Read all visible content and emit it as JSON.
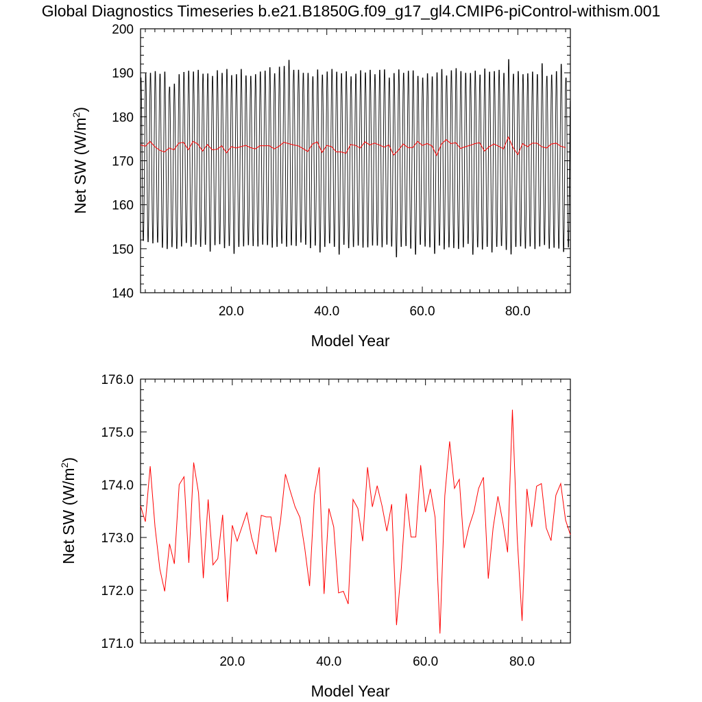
{
  "figure_title": "Global Diagnostics Timeseries b.e21.B1850G.f09_g17_gl4.CMIP6-piControl-withism.001",
  "colors": {
    "monthly": "#000000",
    "annual": "#ff0000",
    "axes": "#000000",
    "background": "#ffffff"
  },
  "chart_data": [
    {
      "type": "line",
      "xlabel": "Model Year",
      "ylabel": "Net SW (W/m",
      "ylabel_sup": "2",
      "ylabel_close": ")",
      "xlim": [
        1,
        91
      ],
      "ylim": [
        140,
        200
      ],
      "xticks": [
        20,
        40,
        60,
        80
      ],
      "xtick_labels": [
        "20.0",
        "40.0",
        "60.0",
        "80.0"
      ],
      "yticks": [
        140,
        150,
        160,
        170,
        180,
        190,
        200
      ],
      "ytick_labels": [
        "140",
        "150",
        "160",
        "170",
        "180",
        "190",
        "200"
      ],
      "grid": false,
      "series": [
        {
          "role": "monthly",
          "color": "#000000",
          "seasonal_cycle": {
            "period_years": 1,
            "peak_month": 1,
            "trough_month": 7
          },
          "annual_peaks": [
            189.5,
            190.5,
            190.6,
            191.0,
            190.4,
            190.9,
            187.4,
            188.1,
            190.3,
            190.8,
            191.1,
            190.9,
            191.3,
            190.4,
            190.5,
            189.9,
            191.2,
            190.6,
            191.5,
            190.1,
            190.3,
            191.5,
            190.0,
            189.9,
            190.3,
            190.9,
            191.1,
            191.9,
            190.5,
            192.0,
            192.2,
            193.6,
            191.3,
            191.3,
            190.6,
            190.6,
            189.8,
            191.4,
            190.2,
            190.9,
            191.5,
            190.9,
            190.5,
            191.0,
            189.8,
            190.4,
            191.2,
            190.7,
            191.3,
            190.3,
            191.3,
            191.4,
            189.5,
            190.6,
            191.4,
            190.6,
            191.1,
            191.2,
            189.9,
            189.5,
            190.5,
            189.8,
            190.7,
            191.5,
            190.0,
            191.2,
            191.7,
            191.0,
            190.6,
            190.6,
            191.1,
            190.2,
            191.6,
            190.9,
            191.0,
            191.3,
            190.6,
            193.8,
            190.4,
            191.0,
            190.3,
            190.5,
            190.9,
            190.3,
            192.8,
            189.9,
            190.2,
            191.0,
            192.7,
            189.5
          ],
          "annual_troughs": [
            151.2,
            150.9,
            150.6,
            150.8,
            149.6,
            149.3,
            149.8,
            149.4,
            149.9,
            150.7,
            149.8,
            150.3,
            149.8,
            150.3,
            148.7,
            150.2,
            150.4,
            149.5,
            150.0,
            148.2,
            149.8,
            149.9,
            150.2,
            150.0,
            149.9,
            150.3,
            150.2,
            149.6,
            149.8,
            150.5,
            149.8,
            150.1,
            150.0,
            150.8,
            150.3,
            149.5,
            150.1,
            148.5,
            149.8,
            150.6,
            149.8,
            148.0,
            150.3,
            149.5,
            149.8,
            150.1,
            149.6,
            149.7,
            150.1,
            150.1,
            149.7,
            150.3,
            149.9,
            147.4,
            149.8,
            150.0,
            149.4,
            148.0,
            150.3,
            149.9,
            149.7,
            148.2,
            150.1,
            149.2,
            149.7,
            149.5,
            149.3,
            149.7,
            150.5,
            148.0,
            149.7,
            149.2,
            149.8,
            148.5,
            149.8,
            150.0,
            149.1,
            148.0,
            149.8,
            149.9,
            149.4,
            149.9,
            149.3,
            149.9,
            150.2,
            149.4,
            149.6,
            149.4,
            148.6,
            149.7
          ]
        },
        {
          "role": "annual_mean",
          "color": "#ff0000",
          "x": [
            1,
            2,
            3,
            4,
            5,
            6,
            7,
            8,
            9,
            10,
            11,
            12,
            13,
            14,
            15,
            16,
            17,
            18,
            19,
            20,
            21,
            22,
            23,
            24,
            25,
            26,
            27,
            28,
            29,
            30,
            31,
            32,
            33,
            34,
            35,
            36,
            37,
            38,
            39,
            40,
            41,
            42,
            43,
            44,
            45,
            46,
            47,
            48,
            49,
            50,
            51,
            52,
            53,
            54,
            55,
            56,
            57,
            58,
            59,
            60,
            61,
            62,
            63,
            64,
            65,
            66,
            67,
            68,
            69,
            70,
            71,
            72,
            73,
            74,
            75,
            76,
            77,
            78,
            79,
            80,
            81,
            82,
            83,
            84,
            85,
            86,
            87,
            88,
            89,
            90
          ],
          "y": [
            173.6,
            173.3,
            174.4,
            173.2,
            172.4,
            172.0,
            172.9,
            172.5,
            174.0,
            174.2,
            172.5,
            174.4,
            173.8,
            172.2,
            173.7,
            172.5,
            172.6,
            173.4,
            171.8,
            173.2,
            172.9,
            173.2,
            173.5,
            173.0,
            172.7,
            173.4,
            173.4,
            173.4,
            172.7,
            173.3,
            174.2,
            173.9,
            173.6,
            173.4,
            172.8,
            172.1,
            173.8,
            174.3,
            171.9,
            173.5,
            173.2,
            172.0,
            172.0,
            171.7,
            173.7,
            173.5,
            172.9,
            174.3,
            173.6,
            174.0,
            173.6,
            173.1,
            173.6,
            171.3,
            172.4,
            173.8,
            173.0,
            173.0,
            174.4,
            173.5,
            173.9,
            173.4,
            171.2,
            173.8,
            174.8,
            173.9,
            174.1,
            172.8,
            173.2,
            173.5,
            173.9,
            174.1,
            172.2,
            173.2,
            173.8,
            173.3,
            172.7,
            175.4,
            173.0,
            171.4,
            173.9,
            173.2,
            174.0,
            174.0,
            173.2,
            172.9,
            173.8,
            174.0,
            173.3,
            173.0
          ]
        }
      ]
    },
    {
      "type": "line",
      "xlabel": "Model Year",
      "ylabel": "Net SW (W/m",
      "ylabel_sup": "2",
      "ylabel_close": ")",
      "xlim": [
        1,
        90
      ],
      "ylim": [
        171,
        176
      ],
      "xticks": [
        20,
        40,
        60,
        80
      ],
      "xtick_labels": [
        "20.0",
        "40.0",
        "60.0",
        "80.0"
      ],
      "yticks": [
        171,
        172,
        173,
        174,
        175,
        176
      ],
      "ytick_labels": [
        "171.0",
        "172.0",
        "173.0",
        "174.0",
        "175.0",
        "176.0"
      ],
      "grid": false,
      "series": [
        {
          "role": "annual_mean",
          "color": "#ff0000",
          "x": [
            1,
            2,
            3,
            4,
            5,
            6,
            7,
            8,
            9,
            10,
            11,
            12,
            13,
            14,
            15,
            16,
            17,
            18,
            19,
            20,
            21,
            22,
            23,
            24,
            25,
            26,
            27,
            28,
            29,
            30,
            31,
            32,
            33,
            34,
            35,
            36,
            37,
            38,
            39,
            40,
            41,
            42,
            43,
            44,
            45,
            46,
            47,
            48,
            49,
            50,
            51,
            52,
            53,
            54,
            55,
            56,
            57,
            58,
            59,
            60,
            61,
            62,
            63,
            64,
            65,
            66,
            67,
            68,
            69,
            70,
            71,
            72,
            73,
            74,
            75,
            76,
            77,
            78,
            79,
            80,
            81,
            82,
            83,
            84,
            85,
            86,
            87,
            88,
            89,
            90
          ],
          "y": [
            173.6,
            173.3,
            174.35,
            173.2,
            172.4,
            171.98,
            172.88,
            172.5,
            174.0,
            174.15,
            172.52,
            174.42,
            173.85,
            172.23,
            173.72,
            172.48,
            172.6,
            173.43,
            171.78,
            173.23,
            172.93,
            173.2,
            173.47,
            173.0,
            172.68,
            173.42,
            173.39,
            173.39,
            172.72,
            173.33,
            174.2,
            173.88,
            173.58,
            173.38,
            172.8,
            172.08,
            173.8,
            174.33,
            171.93,
            173.55,
            173.2,
            171.95,
            171.98,
            171.74,
            173.72,
            173.55,
            172.93,
            174.33,
            173.58,
            173.98,
            173.6,
            173.12,
            173.63,
            171.34,
            172.42,
            173.83,
            173.01,
            173.01,
            174.37,
            173.48,
            173.92,
            173.38,
            171.18,
            173.79,
            174.82,
            173.93,
            174.1,
            172.8,
            173.2,
            173.48,
            173.93,
            174.14,
            172.22,
            173.18,
            173.78,
            173.3,
            172.72,
            175.42,
            172.98,
            171.42,
            173.92,
            173.2,
            173.97,
            174.02,
            173.18,
            172.94,
            173.8,
            174.02,
            173.33,
            173.05
          ]
        }
      ]
    }
  ]
}
